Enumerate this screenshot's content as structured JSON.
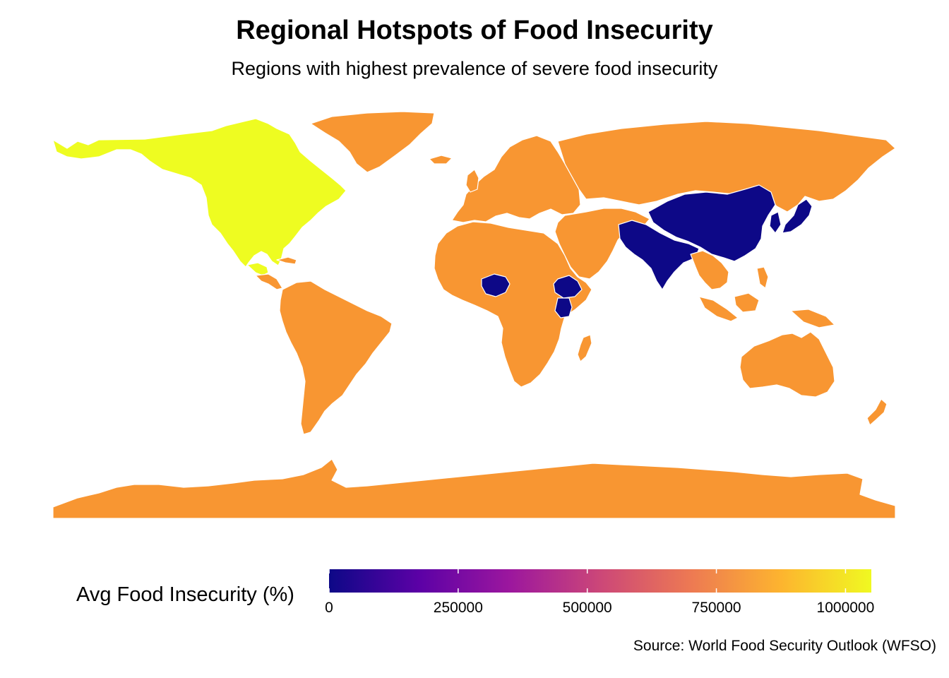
{
  "title": "Regional Hotspots of Food Insecurity",
  "subtitle": "Regions with highest prevalence of severe food insecurity",
  "caption": "Source: World Food Security Outlook (WFSO)",
  "legend": {
    "title": "Avg Food Insecurity (%)",
    "min": 0,
    "max": 1050000,
    "ticks": [
      {
        "value": 0,
        "label": "0"
      },
      {
        "value": 250000,
        "label": "250000"
      },
      {
        "value": 500000,
        "label": "500000"
      },
      {
        "value": 750000,
        "label": "750000"
      },
      {
        "value": 1000000,
        "label": "1000000"
      }
    ],
    "palette": [
      "#0d0887",
      "#5c01a6",
      "#9c179e",
      "#cc4778",
      "#ed7953",
      "#fdb42f",
      "#f0f921"
    ]
  },
  "colors": {
    "low": "#0d0887",
    "mid": "#f89632",
    "high": "#eefc21",
    "border": "#ffffff"
  },
  "regions": [
    {
      "name": "North America",
      "value": 1050000
    },
    {
      "name": "Central America",
      "value": 1050000
    },
    {
      "name": "South America",
      "value": 780000
    },
    {
      "name": "Greenland",
      "value": 780000
    },
    {
      "name": "Europe",
      "value": 780000
    },
    {
      "name": "Russia",
      "value": 780000
    },
    {
      "name": "Middle East",
      "value": 780000
    },
    {
      "name": "Africa",
      "value": 780000
    },
    {
      "name": "Nigeria",
      "value": 0
    },
    {
      "name": "Ethiopia",
      "value": 0
    },
    {
      "name": "Kenya",
      "value": 0
    },
    {
      "name": "South Asia",
      "value": 0
    },
    {
      "name": "China",
      "value": 0
    },
    {
      "name": "Japan",
      "value": 0
    },
    {
      "name": "Southeast Asia",
      "value": 780000
    },
    {
      "name": "Australia",
      "value": 780000
    },
    {
      "name": "Antarctica",
      "value": 780000
    }
  ]
}
